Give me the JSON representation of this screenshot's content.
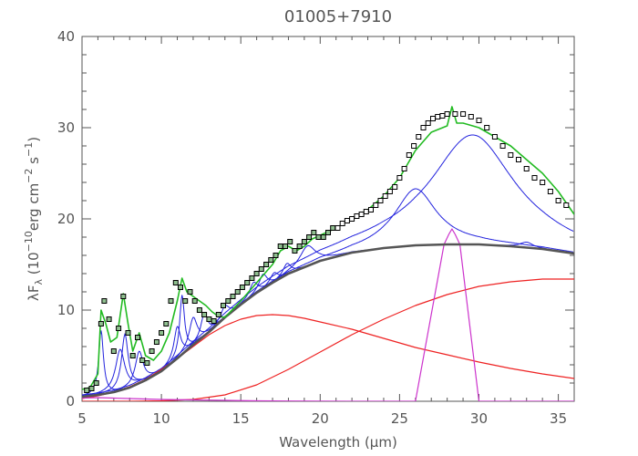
{
  "chart_data": {
    "type": "line",
    "title": "01005+7910",
    "xlabel": "Wavelength (μm)",
    "ylabel_parts": {
      "lambda": "λF",
      "sub": "λ",
      "open": " (10",
      "exp1": "−10",
      "unit": "erg cm",
      "exp2": "−2",
      "s": " s",
      "exp3": "−1",
      "close": ")"
    },
    "xlim": [
      5,
      36
    ],
    "ylim": [
      0,
      40
    ],
    "x_ticks": [
      5,
      10,
      15,
      20,
      25,
      30,
      35
    ],
    "y_ticks": [
      0,
      10,
      20,
      30,
      40
    ],
    "grid": false,
    "colors": {
      "axes": "#555555",
      "data": "#000000",
      "data_fill": "#8fbf8f",
      "model_total": "#22bb22",
      "continuum": "#555555",
      "features": "#2222dd",
      "blackbody": "#ee2222",
      "lines": "#cc33cc"
    },
    "series": [
      {
        "role": "data",
        "style": "points",
        "x": [
          5.3,
          5.6,
          5.9,
          6.2,
          6.4,
          6.7,
          7.0,
          7.3,
          7.6,
          7.9,
          8.2,
          8.5,
          8.8,
          9.1,
          9.4,
          9.7,
          10.0,
          10.3,
          10.6,
          10.9,
          11.2,
          11.5,
          11.8,
          12.1,
          12.4,
          12.7,
          13.0,
          13.3,
          13.6,
          13.9,
          14.2,
          14.5,
          14.8,
          15.1,
          15.4,
          15.7,
          16.0,
          16.3,
          16.6,
          16.9,
          17.2,
          17.5,
          17.8,
          18.1,
          18.4,
          18.7,
          19.0,
          19.3,
          19.6,
          19.9,
          20.2,
          20.5,
          20.8,
          21.1,
          21.4,
          21.7,
          22.0,
          22.3,
          22.6,
          22.9,
          23.2,
          23.5,
          23.8,
          24.1,
          24.4,
          24.7,
          25.0,
          25.3,
          25.6,
          25.9,
          26.2,
          26.5,
          26.8,
          27.1,
          27.4,
          27.7,
          28.0,
          28.5,
          29.0,
          29.5,
          30.0,
          30.5,
          31.0,
          31.5,
          32.0,
          32.5,
          33.0,
          33.5,
          34.0,
          34.5,
          35.0,
          35.5
        ],
        "y": [
          1.2,
          1.4,
          2.0,
          8.5,
          11.0,
          9.0,
          5.5,
          8.0,
          11.5,
          7.5,
          5.0,
          7.0,
          4.5,
          4.2,
          5.5,
          6.5,
          7.5,
          8.5,
          11.0,
          13.0,
          12.5,
          11.0,
          12.0,
          11.0,
          10.0,
          9.5,
          9.0,
          8.8,
          9.5,
          10.5,
          11.0,
          11.5,
          12.0,
          12.5,
          13.0,
          13.5,
          14.0,
          14.5,
          15.0,
          15.5,
          16.0,
          17.0,
          17.0,
          17.5,
          16.5,
          17.0,
          17.5,
          18.0,
          18.5,
          18.0,
          18.0,
          18.5,
          19.0,
          19.0,
          19.5,
          19.8,
          20.0,
          20.3,
          20.5,
          20.8,
          21.0,
          21.5,
          22.0,
          22.5,
          23.0,
          23.5,
          24.5,
          25.5,
          27.0,
          28.0,
          29.0,
          30.0,
          30.5,
          31.0,
          31.2,
          31.3,
          31.5,
          31.5,
          31.5,
          31.2,
          30.8,
          30.0,
          29.0,
          28.0,
          27.0,
          26.5,
          25.5,
          24.5,
          24.0,
          23.0,
          22.0,
          21.5
        ]
      },
      {
        "role": "model_total",
        "style": "line",
        "x": [
          5.0,
          5.5,
          6.0,
          6.2,
          6.5,
          6.8,
          7.2,
          7.6,
          7.9,
          8.2,
          8.6,
          9.0,
          9.5,
          10.0,
          10.5,
          11.0,
          11.3,
          11.6,
          12.0,
          12.4,
          12.8,
          13.2,
          13.6,
          14.0,
          15.0,
          16.0,
          16.5,
          17.0,
          17.5,
          18.0,
          18.5,
          19.0,
          19.5,
          20.0,
          21.0,
          22.0,
          23.0,
          24.0,
          25.0,
          26.0,
          27.0,
          28.0,
          28.3,
          28.6,
          29.0,
          30.0,
          31.0,
          32.0,
          33.0,
          34.0,
          35.0,
          36.0
        ],
        "y": [
          1.3,
          1.5,
          3.0,
          10.0,
          8.5,
          6.5,
          7.0,
          11.8,
          8.5,
          5.5,
          7.5,
          5.0,
          4.5,
          5.5,
          7.5,
          11.0,
          13.5,
          12.0,
          11.5,
          11.0,
          10.5,
          9.8,
          9.3,
          9.2,
          11.0,
          13.0,
          14.0,
          15.0,
          16.5,
          17.0,
          16.5,
          17.0,
          17.8,
          18.2,
          19.0,
          20.0,
          21.0,
          22.5,
          24.5,
          27.5,
          29.5,
          30.2,
          32.3,
          30.5,
          30.5,
          30.0,
          29.0,
          28.0,
          26.5,
          25.0,
          23.0,
          20.5
        ]
      },
      {
        "role": "continuum",
        "style": "line",
        "x": [
          5,
          6,
          7,
          8,
          9,
          10,
          11,
          12,
          13,
          14,
          15,
          16,
          17,
          18,
          20,
          22,
          24,
          26,
          28,
          30,
          32,
          34,
          36
        ],
        "y": [
          0.5,
          0.7,
          1.0,
          1.5,
          2.3,
          3.3,
          4.7,
          6.2,
          7.6,
          9.2,
          10.6,
          11.9,
          13.0,
          14.0,
          15.4,
          16.3,
          16.8,
          17.1,
          17.2,
          17.2,
          17.0,
          16.7,
          16.2
        ]
      },
      {
        "role": "blackbody_warm",
        "style": "line",
        "x": [
          5,
          6,
          7,
          8,
          9,
          10,
          11,
          12,
          13,
          14,
          15,
          16,
          17,
          18,
          19,
          20,
          22,
          24,
          26,
          28,
          30,
          32,
          34,
          36
        ],
        "y": [
          0.3,
          0.6,
          1.0,
          1.6,
          2.4,
          3.5,
          4.7,
          6.0,
          7.3,
          8.3,
          9.0,
          9.4,
          9.5,
          9.4,
          9.1,
          8.7,
          7.9,
          6.9,
          5.9,
          5.1,
          4.3,
          3.6,
          3.0,
          2.5
        ]
      },
      {
        "role": "blackbody_cold",
        "style": "line",
        "x": [
          5,
          8,
          10,
          12,
          14,
          16,
          18,
          20,
          22,
          24,
          26,
          28,
          30,
          32,
          34,
          36
        ],
        "y": [
          0.0,
          0.0,
          0.05,
          0.2,
          0.7,
          1.8,
          3.5,
          5.4,
          7.3,
          9.0,
          10.5,
          11.7,
          12.6,
          13.1,
          13.4,
          13.4
        ]
      },
      {
        "role": "lines",
        "style": "line",
        "x": [
          5,
          6,
          7,
          8,
          9,
          10,
          12,
          14,
          16,
          18,
          20,
          22,
          24,
          26,
          27.8,
          28.1,
          28.3,
          28.5,
          28.8,
          30,
          32,
          34,
          36
        ],
        "y": [
          0.35,
          0.4,
          0.35,
          0.3,
          0.25,
          0.2,
          0.15,
          0.1,
          0.05,
          0.03,
          0.02,
          0.0,
          0.0,
          0.0,
          17.2,
          18.3,
          18.9,
          18.3,
          17.2,
          0,
          0,
          0,
          0
        ]
      }
    ],
    "features": [
      {
        "center": 6.2,
        "width": 0.18,
        "height": 7.0
      },
      {
        "center": 7.4,
        "width": 0.35,
        "height": 4.5
      },
      {
        "center": 7.7,
        "width": 0.25,
        "height": 6.0
      },
      {
        "center": 8.6,
        "width": 0.3,
        "height": 3.5
      },
      {
        "center": 11.3,
        "width": 0.18,
        "height": 6.5
      },
      {
        "center": 11.0,
        "width": 0.25,
        "height": 3.5
      },
      {
        "center": 12.0,
        "width": 0.3,
        "height": 3.0
      },
      {
        "center": 12.7,
        "width": 0.25,
        "height": 2.5
      },
      {
        "center": 14.0,
        "width": 0.3,
        "height": 1.3
      },
      {
        "center": 15.8,
        "width": 0.3,
        "height": 1.4
      },
      {
        "center": 16.4,
        "width": 0.3,
        "height": 1.6
      },
      {
        "center": 17.1,
        "width": 0.3,
        "height": 1.0
      },
      {
        "center": 17.9,
        "width": 0.3,
        "height": 1.2
      },
      {
        "center": 19.2,
        "width": 0.6,
        "height": 2.2
      },
      {
        "center": 26.0,
        "width": 1.6,
        "height": 6.2
      },
      {
        "center": 29.6,
        "width": 3.2,
        "height": 12.0
      },
      {
        "center": 33.0,
        "width": 0.5,
        "height": 0.6
      }
    ]
  }
}
